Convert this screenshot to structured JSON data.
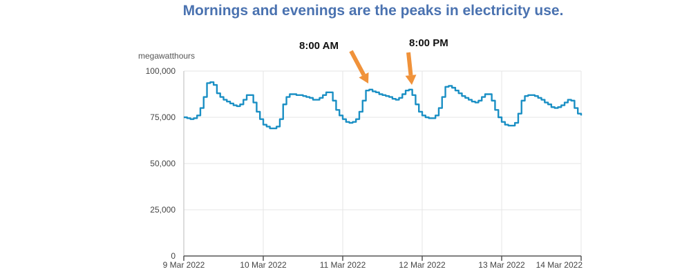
{
  "title": "Mornings and evenings are the peaks in electricity use.",
  "annotations": [
    "8:00 AM",
    "8:00 PM"
  ],
  "colors": {
    "title": "#4a72b0",
    "line": "#1a8fc4",
    "arrow": "#f0923a",
    "grid": "#e6e6e6"
  },
  "chart_data": {
    "type": "line",
    "step": true,
    "title": "Mornings and evenings are the peaks in electricity use.",
    "ylabel": "megawatthours",
    "xlabel": "",
    "ylim": [
      0,
      100000
    ],
    "yticks": [
      0,
      25000,
      50000,
      75000,
      100000
    ],
    "ytick_labels": [
      "0",
      "25,000",
      "50,000",
      "75,000",
      "100,000"
    ],
    "xtick_labels": [
      "9 Mar 2022",
      "10 Mar 2022",
      "11 Mar 2022",
      "12 Mar 2022",
      "13 Mar 2022",
      "14 Mar 2022"
    ],
    "x_range": [
      "9 Mar 2022",
      "14 Mar 2022"
    ],
    "x_interval": "hourly",
    "grid": true,
    "annotations": [
      {
        "text": "8:00 AM",
        "points_to": "11 Mar 2022 08:00"
      },
      {
        "text": "8:00 PM",
        "points_to": "11 Mar 2022 20:00"
      }
    ],
    "values": [
      75000,
      74500,
      74000,
      74500,
      76000,
      80000,
      86000,
      93500,
      94000,
      92500,
      88000,
      86000,
      84500,
      83500,
      82500,
      81500,
      81000,
      82000,
      84500,
      87000,
      87000,
      83000,
      78000,
      74000,
      71000,
      70000,
      69000,
      69000,
      70000,
      74000,
      82000,
      86000,
      87500,
      87500,
      87000,
      87000,
      86500,
      86000,
      85500,
      84500,
      84500,
      85500,
      87000,
      88500,
      88500,
      84000,
      79000,
      76000,
      74000,
      72500,
      72000,
      72500,
      74000,
      78000,
      84000,
      89500,
      90000,
      89000,
      88500,
      87500,
      87000,
      86500,
      86000,
      85000,
      84500,
      85500,
      87500,
      89500,
      90000,
      87000,
      82000,
      78000,
      76000,
      75000,
      74500,
      74500,
      76000,
      80000,
      86000,
      91500,
      92000,
      91000,
      89500,
      88000,
      86500,
      85500,
      84500,
      83500,
      83000,
      84000,
      86000,
      87500,
      87500,
      84000,
      79000,
      75000,
      72500,
      71000,
      70500,
      70500,
      72000,
      77000,
      84000,
      86500,
      87000,
      87000,
      86500,
      85500,
      84500,
      83000,
      82000,
      80500,
      80000,
      80500,
      81500,
      83000,
      84500,
      84000,
      80000,
      77000,
      76000
    ]
  }
}
